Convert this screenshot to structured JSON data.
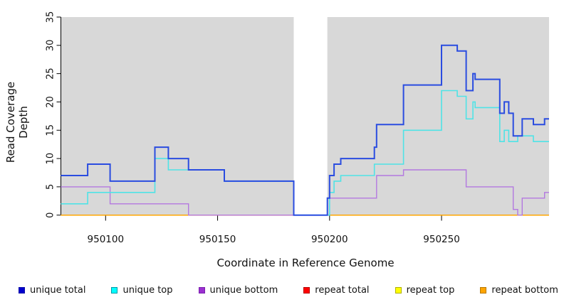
{
  "chart_data": {
    "type": "line",
    "subtype": "step-coverage",
    "title": "",
    "xlabel": "Coordinate in Reference Genome",
    "ylabel": "Read Coverage Depth",
    "xlim": [
      950080,
      950298
    ],
    "ylim": [
      0,
      35
    ],
    "x_ticks": [
      950100,
      950150,
      950200,
      950250
    ],
    "y_ticks": [
      0,
      5,
      10,
      15,
      20,
      25,
      30,
      35
    ],
    "grid": "off",
    "plot_background": "#d8d8d8",
    "masked_region": {
      "start": 950184,
      "end": 950199,
      "color": "#ffffff"
    },
    "series": [
      {
        "name": "repeat total",
        "color": "#dd0000",
        "width": 1.2,
        "steps": [
          [
            950080,
            0
          ]
        ],
        "x_end": 950298
      },
      {
        "name": "repeat top",
        "color": "#ffff00",
        "width": 1.2,
        "steps": [
          [
            950080,
            0
          ]
        ],
        "x_end": 950298
      },
      {
        "name": "repeat bottom",
        "color": "#ffa500",
        "width": 1.5,
        "steps": [
          [
            950080,
            0
          ]
        ],
        "x_end": 950298
      },
      {
        "name": "unique bottom",
        "color": "#b378e0",
        "width": 1.4,
        "steps": [
          [
            950080,
            5
          ],
          [
            950102,
            2
          ],
          [
            950137,
            0
          ],
          [
            950200,
            3
          ],
          [
            950221,
            7
          ],
          [
            950233,
            8
          ],
          [
            950261,
            5
          ],
          [
            950282,
            1
          ],
          [
            950284,
            0
          ],
          [
            950286,
            3
          ],
          [
            950296,
            4
          ]
        ],
        "x_end": 950298
      },
      {
        "name": "unique top",
        "color": "#4fe3e6",
        "width": 1.6,
        "steps": [
          [
            950080,
            2
          ],
          [
            950092,
            4
          ],
          [
            950122,
            10
          ],
          [
            950128,
            8
          ],
          [
            950153,
            6
          ],
          [
            950184,
            0
          ],
          [
            950200,
            4
          ],
          [
            950202,
            6
          ],
          [
            950205,
            7
          ],
          [
            950220,
            9
          ],
          [
            950233,
            15
          ],
          [
            950250,
            22
          ],
          [
            950257,
            21
          ],
          [
            950261,
            17
          ],
          [
            950264,
            20
          ],
          [
            950265,
            19
          ],
          [
            950276,
            13
          ],
          [
            950278,
            15
          ],
          [
            950280,
            13
          ],
          [
            950284,
            14
          ],
          [
            950291,
            13
          ]
        ],
        "x_end": 950298
      },
      {
        "name": "unique total",
        "color": "#2a4ce0",
        "width": 2,
        "steps": [
          [
            950080,
            7
          ],
          [
            950092,
            9
          ],
          [
            950102,
            6
          ],
          [
            950122,
            12
          ],
          [
            950128,
            10
          ],
          [
            950137,
            8
          ],
          [
            950153,
            6
          ],
          [
            950184,
            0
          ],
          [
            950199,
            3
          ],
          [
            950200,
            7
          ],
          [
            950202,
            9
          ],
          [
            950205,
            10
          ],
          [
            950220,
            12
          ],
          [
            950221,
            16
          ],
          [
            950233,
            23
          ],
          [
            950250,
            30
          ],
          [
            950257,
            29
          ],
          [
            950261,
            22
          ],
          [
            950264,
            25
          ],
          [
            950265,
            24
          ],
          [
            950276,
            18
          ],
          [
            950278,
            20
          ],
          [
            950280,
            18
          ],
          [
            950282,
            14
          ],
          [
            950286,
            17
          ],
          [
            950291,
            16
          ],
          [
            950296,
            17
          ]
        ],
        "x_end": 950298
      }
    ],
    "legend_position": "bottom",
    "legend": [
      {
        "label": "unique total",
        "fill": "#0000cd",
        "border": "#0a0aa8"
      },
      {
        "label": "unique top",
        "fill": "#00ffff",
        "border": "#0099a8"
      },
      {
        "label": "unique bottom",
        "fill": "#9b30d0",
        "border": "#7a1fae"
      },
      {
        "label": "repeat total",
        "fill": "#ff0000",
        "border": "#b80000"
      },
      {
        "label": "repeat top",
        "fill": "#ffff00",
        "border": "#b0b000"
      },
      {
        "label": "repeat bottom",
        "fill": "#ffa500",
        "border": "#b87800"
      }
    ]
  }
}
